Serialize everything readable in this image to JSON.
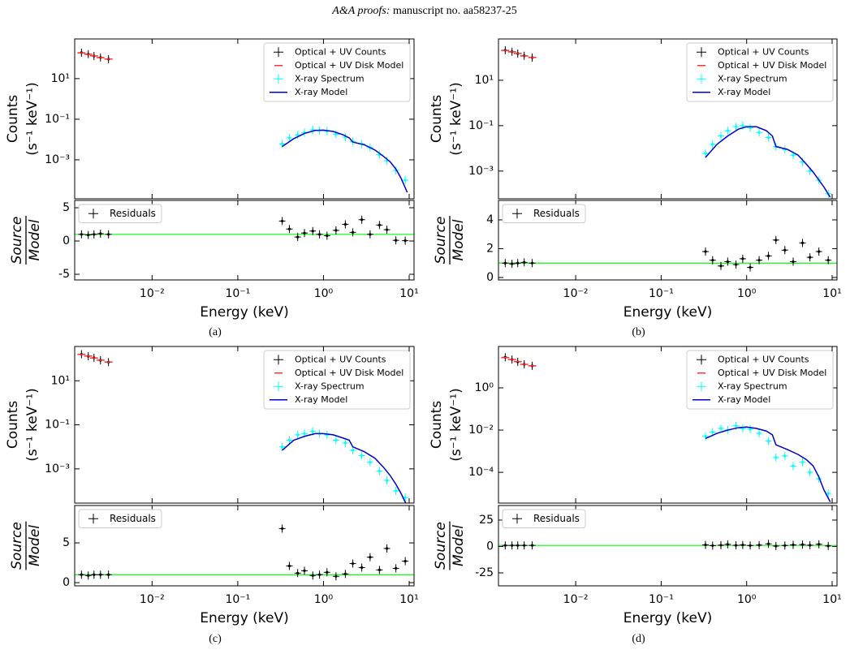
{
  "header": {
    "journal": "A&A proofs:",
    "manuscript": "manuscript no. aa58237-25"
  },
  "captions": [
    "(a)",
    "(b)",
    "(c)",
    "(d)"
  ],
  "chart_data": [
    {
      "type": "spectrum",
      "ylabel": [
        "Counts",
        "(s⁻¹ keV⁻¹)"
      ],
      "xscale": "log",
      "yscale": "log",
      "xlim": [
        0.00125,
        11.4
      ],
      "ylim": [
        1.2e-05,
        900
      ],
      "legend": "upper right",
      "yticks": [
        {
          "value": 10,
          "label": "10¹"
        },
        {
          "value": 0.1,
          "label": "10⁻¹"
        },
        {
          "value": 0.001,
          "label": "10⁻³"
        }
      ],
      "series": [
        {
          "name": "Optical + UV Counts",
          "color": "#000000",
          "marker": "errorbar",
          "x": [
            0.0015,
            0.0018,
            0.0021,
            0.0025,
            0.0031
          ],
          "values": [
            190,
            160,
            130,
            110,
            91
          ]
        },
        {
          "name": "Optical + UV Disk Model",
          "color": "#ff3030",
          "marker": "step",
          "x": [
            0.0015,
            0.0018,
            0.0021,
            0.0025,
            0.0031
          ],
          "values": [
            185,
            158,
            132,
            108,
            92
          ]
        },
        {
          "name": "X-ray Spectrum",
          "color": "#00ffff",
          "marker": "errorbar",
          "x": [
            0.33,
            0.4,
            0.5,
            0.6,
            0.75,
            0.9,
            1.1,
            1.4,
            1.8,
            2.2,
            2.8,
            3.5,
            4.5,
            5.5,
            7,
            9
          ],
          "values": [
            0.006,
            0.012,
            0.017,
            0.022,
            0.03,
            0.028,
            0.026,
            0.018,
            0.013,
            0.008,
            0.006,
            0.004,
            0.0018,
            0.0009,
            0.0003,
            0.0001
          ]
        },
        {
          "name": "X-ray Model",
          "color": "#0000cd",
          "marker": "line",
          "x": [
            0.33,
            0.45,
            0.6,
            0.8,
            1.0,
            1.3,
            1.7,
            2.0,
            2.2,
            3,
            4,
            5,
            6,
            7,
            8,
            9.5
          ],
          "values": [
            0.0045,
            0.011,
            0.02,
            0.028,
            0.029,
            0.025,
            0.017,
            0.012,
            0.0075,
            0.0055,
            0.003,
            0.0015,
            0.0008,
            0.00035,
            0.00013,
            2.5e-05
          ]
        }
      ]
    },
    {
      "type": "residuals",
      "ylabel": {
        "numerator": "Source",
        "denominator": "Model"
      },
      "xlabel": "Energy (keV)",
      "xscale": "log",
      "yscale": "linear",
      "xlim": [
        0.00125,
        11.4
      ],
      "ylim": [
        -5.85,
        6.1
      ],
      "legend": "upper left",
      "hline": 1,
      "hline_color": "#00ff00",
      "xticks": [
        {
          "value": 0.01,
          "label": "10⁻²"
        },
        {
          "value": 0.1,
          "label": "10⁻¹"
        },
        {
          "value": 1,
          "label": "10⁰"
        },
        {
          "value": 10,
          "label": "10¹"
        }
      ],
      "yticks": [
        -5,
        0,
        5
      ],
      "series": [
        {
          "name": "Residuals",
          "color": "#000000",
          "marker": "errorbar",
          "x": [
            0.0015,
            0.0018,
            0.0021,
            0.0025,
            0.0031,
            0.33,
            0.4,
            0.5,
            0.6,
            0.75,
            0.9,
            1.1,
            1.4,
            1.8,
            2.2,
            2.8,
            3.5,
            4.5,
            5.5,
            7,
            9
          ],
          "values": [
            1,
            0.9,
            1,
            1.1,
            1,
            3,
            1.8,
            0.6,
            1.2,
            1.5,
            1,
            0.8,
            1.6,
            2.5,
            1.3,
            3.2,
            1,
            2.4,
            1.7,
            0.1,
            0.05
          ]
        }
      ]
    },
    {
      "type": "spectrum",
      "ylabel": [
        "Counts",
        "(s⁻¹ keV⁻¹)"
      ],
      "xscale": "log",
      "yscale": "log",
      "xlim": [
        0.00125,
        11.4
      ],
      "ylim": [
        6e-05,
        660
      ],
      "legend": "upper right",
      "yticks": [
        {
          "value": 10,
          "label": "10¹"
        },
        {
          "value": 0.1,
          "label": "10⁻¹"
        },
        {
          "value": 0.001,
          "label": "10⁻³"
        }
      ],
      "series": [
        {
          "name": "Optical + UV Counts",
          "color": "#000000",
          "marker": "errorbar",
          "x": [
            0.0015,
            0.0018,
            0.0021,
            0.0025,
            0.0031
          ],
          "values": [
            210,
            180,
            150,
            120,
            100
          ]
        },
        {
          "name": "Optical + UV Disk Model",
          "color": "#ff3030",
          "marker": "step",
          "x": [
            0.0015,
            0.0018,
            0.0021,
            0.0025,
            0.0031
          ],
          "values": [
            205,
            178,
            152,
            118,
            101
          ]
        },
        {
          "name": "X-ray Spectrum",
          "color": "#00ffff",
          "marker": "errorbar",
          "x": [
            0.33,
            0.4,
            0.5,
            0.6,
            0.75,
            0.9,
            1.1,
            1.4,
            1.8,
            2.2,
            2.8,
            3.5,
            4.5,
            5.5,
            7,
            9
          ],
          "values": [
            0.006,
            0.015,
            0.035,
            0.06,
            0.09,
            0.1,
            0.08,
            0.05,
            0.03,
            0.012,
            0.009,
            0.005,
            0.0025,
            0.001,
            0.0004,
            0.0001
          ]
        },
        {
          "name": "X-ray Model",
          "color": "#0000cd",
          "marker": "line",
          "x": [
            0.33,
            0.45,
            0.6,
            0.8,
            1.0,
            1.3,
            1.7,
            2.0,
            2.2,
            3,
            4,
            5,
            6,
            7,
            8,
            9.5
          ],
          "values": [
            0.004,
            0.015,
            0.035,
            0.07,
            0.09,
            0.09,
            0.06,
            0.035,
            0.012,
            0.009,
            0.005,
            0.002,
            0.0009,
            0.0004,
            0.0002,
            7e-05
          ]
        }
      ]
    },
    {
      "type": "residuals",
      "ylabel": {
        "numerator": "Source",
        "denominator": "Model"
      },
      "xlabel": "Energy (keV)",
      "xscale": "log",
      "yscale": "linear",
      "xlim": [
        0.00125,
        11.4
      ],
      "ylim": [
        -0.17,
        5.35
      ],
      "legend": "upper left",
      "hline": 1,
      "hline_color": "#00ff00",
      "xticks": [
        {
          "value": 0.01,
          "label": "10⁻²"
        },
        {
          "value": 0.1,
          "label": "10⁻¹"
        },
        {
          "value": 1,
          "label": "10⁰"
        },
        {
          "value": 10,
          "label": "10¹"
        }
      ],
      "yticks": [
        0,
        2,
        4
      ],
      "series": [
        {
          "name": "Residuals",
          "color": "#000000",
          "marker": "errorbar",
          "x": [
            0.0015,
            0.0018,
            0.0021,
            0.0025,
            0.0031,
            0.33,
            0.4,
            0.5,
            0.6,
            0.75,
            0.9,
            1.1,
            1.4,
            1.8,
            2.2,
            2.8,
            3.5,
            4.5,
            5.5,
            7,
            9
          ],
          "values": [
            1,
            0.95,
            1,
            1.05,
            1,
            1.8,
            1.2,
            0.8,
            1.1,
            0.9,
            1.3,
            0.7,
            1.2,
            1.5,
            2.6,
            1.9,
            1.1,
            2.4,
            1.4,
            1.8,
            1.2
          ]
        }
      ]
    },
    {
      "type": "spectrum",
      "ylabel": [
        "Counts",
        "(s⁻¹ keV⁻¹)"
      ],
      "xscale": "log",
      "yscale": "log",
      "xlim": [
        0.00125,
        11.4
      ],
      "ylim": [
        2.8e-05,
        360
      ],
      "legend": "upper right",
      "yticks": [
        {
          "value": 10,
          "label": "10¹"
        },
        {
          "value": 0.1,
          "label": "10⁻¹"
        },
        {
          "value": 0.001,
          "label": "10⁻³"
        }
      ],
      "series": [
        {
          "name": "Optical + UV Counts",
          "color": "#000000",
          "marker": "errorbar",
          "x": [
            0.0015,
            0.0018,
            0.0021,
            0.0025,
            0.0031
          ],
          "values": [
            160,
            130,
            110,
            85,
            70
          ]
        },
        {
          "name": "Optical + UV Disk Model",
          "color": "#ff3030",
          "marker": "step",
          "x": [
            0.0015,
            0.0018,
            0.0021,
            0.0025,
            0.0031
          ],
          "values": [
            158,
            132,
            108,
            86,
            71
          ]
        },
        {
          "name": "X-ray Spectrum",
          "color": "#00ffff",
          "marker": "errorbar",
          "x": [
            0.33,
            0.4,
            0.5,
            0.6,
            0.75,
            0.9,
            1.1,
            1.4,
            1.8,
            2.2,
            2.8,
            3.5,
            4.5,
            5.5,
            7,
            9
          ],
          "values": [
            0.01,
            0.02,
            0.035,
            0.04,
            0.05,
            0.04,
            0.035,
            0.02,
            0.015,
            0.007,
            0.004,
            0.002,
            0.0008,
            0.0003,
            0.0001,
            5e-05
          ]
        },
        {
          "name": "X-ray Model",
          "color": "#0000cd",
          "marker": "line",
          "x": [
            0.33,
            0.45,
            0.6,
            0.8,
            1.0,
            1.3,
            1.7,
            2.0,
            2.2,
            3,
            4,
            5,
            6,
            7,
            8,
            9.5
          ],
          "values": [
            0.007,
            0.02,
            0.03,
            0.04,
            0.04,
            0.035,
            0.025,
            0.02,
            0.01,
            0.006,
            0.003,
            0.0012,
            0.0005,
            0.0002,
            8e-05,
            2e-05
          ]
        }
      ]
    },
    {
      "type": "residuals",
      "ylabel": {
        "numerator": "Source",
        "denominator": "Model"
      },
      "xlabel": "Energy (keV)",
      "xscale": "log",
      "yscale": "linear",
      "xlim": [
        0.00125,
        11.4
      ],
      "ylim": [
        -0.4,
        9.7
      ],
      "legend": "upper left",
      "hline": 1,
      "hline_color": "#00ff00",
      "xticks": [
        {
          "value": 0.01,
          "label": "10⁻²"
        },
        {
          "value": 0.1,
          "label": "10⁻¹"
        },
        {
          "value": 1,
          "label": "10⁰"
        },
        {
          "value": 10,
          "label": "10¹"
        }
      ],
      "yticks": [
        0,
        5
      ],
      "series": [
        {
          "name": "Residuals",
          "color": "#000000",
          "marker": "errorbar",
          "x": [
            0.0015,
            0.0018,
            0.0021,
            0.0025,
            0.0031,
            0.33,
            0.4,
            0.5,
            0.6,
            0.75,
            0.9,
            1.1,
            1.4,
            1.8,
            2.2,
            2.8,
            3.5,
            4.5,
            5.5,
            7,
            9
          ],
          "values": [
            1,
            0.9,
            1,
            1,
            1,
            6.8,
            2.1,
            1.2,
            1.5,
            0.9,
            1,
            1.3,
            0.8,
            1.1,
            2.4,
            1.9,
            3.2,
            1.6,
            4.3,
            1.8,
            2.7
          ]
        }
      ]
    },
    {
      "type": "spectrum",
      "ylabel": [
        "Counts",
        "(s⁻¹ keV⁻¹)"
      ],
      "xscale": "log",
      "yscale": "log",
      "xlim": [
        0.00125,
        11.4
      ],
      "ylim": [
        3.5e-06,
        91
      ],
      "legend": "upper right",
      "yticks": [
        {
          "value": 1,
          "label": "10⁰"
        },
        {
          "value": 0.01,
          "label": "10⁻²"
        },
        {
          "value": 0.0001,
          "label": "10⁻⁴"
        }
      ],
      "series": [
        {
          "name": "Optical + UV Counts",
          "color": "#000000",
          "marker": "errorbar",
          "x": [
            0.0015,
            0.0018,
            0.0021,
            0.0025,
            0.0031
          ],
          "values": [
            28,
            22,
            17,
            13,
            11
          ]
        },
        {
          "name": "Optical + UV Disk Model",
          "color": "#ff3030",
          "marker": "step",
          "x": [
            0.0015,
            0.0018,
            0.0021,
            0.0025,
            0.0031
          ],
          "values": [
            27,
            22,
            17.5,
            13,
            11
          ]
        },
        {
          "name": "X-ray Spectrum",
          "color": "#00ffff",
          "marker": "errorbar",
          "x": [
            0.33,
            0.4,
            0.5,
            0.6,
            0.75,
            0.9,
            1.1,
            1.4,
            1.8,
            2.2,
            2.8,
            3.5,
            4.5,
            5.5,
            7,
            9
          ],
          "values": [
            0.005,
            0.008,
            0.012,
            0.01,
            0.016,
            0.012,
            0.011,
            0.007,
            0.003,
            0.0005,
            0.0006,
            0.0002,
            0.0003,
            0.0001,
            5e-05,
            1e-05
          ]
        },
        {
          "name": "X-ray Model",
          "color": "#0000cd",
          "marker": "line",
          "x": [
            0.33,
            0.45,
            0.6,
            0.8,
            1.0,
            1.3,
            1.7,
            2.0,
            2.2,
            3,
            4,
            5,
            6,
            7,
            8,
            9.5
          ],
          "values": [
            0.004,
            0.007,
            0.01,
            0.013,
            0.014,
            0.012,
            0.009,
            0.006,
            0.002,
            0.0012,
            0.0007,
            0.0004,
            0.0002,
            6e-05,
            1.5e-05,
            4e-06
          ]
        }
      ]
    },
    {
      "type": "residuals",
      "ylabel": {
        "numerator": "Source",
        "denominator": "Model"
      },
      "xlabel": "Energy (keV)",
      "xscale": "log",
      "yscale": "linear",
      "xlim": [
        0.00125,
        11.4
      ],
      "ylim": [
        -37.3,
        38.8
      ],
      "legend": "upper left",
      "hline": 1,
      "hline_color": "#00ff00",
      "xticks": [
        {
          "value": 0.01,
          "label": "10⁻²"
        },
        {
          "value": 0.1,
          "label": "10⁻¹"
        },
        {
          "value": 1,
          "label": "10⁰"
        },
        {
          "value": 10,
          "label": "10¹"
        }
      ],
      "yticks": [
        -25,
        0,
        25
      ],
      "series": [
        {
          "name": "Residuals",
          "color": "#000000",
          "marker": "errorbar",
          "x": [
            0.0015,
            0.0018,
            0.0021,
            0.0025,
            0.0031,
            0.33,
            0.4,
            0.5,
            0.6,
            0.75,
            0.9,
            1.1,
            1.4,
            1.8,
            2.2,
            2.8,
            3.5,
            4.5,
            5.5,
            7,
            9
          ],
          "values": [
            1,
            1,
            1,
            1,
            1,
            1.5,
            0.8,
            1.2,
            2,
            1.1,
            1.4,
            0.9,
            1.3,
            2.5,
            0.4,
            0.9,
            1.5,
            1.8,
            1.2,
            2.1,
            0.5
          ]
        }
      ]
    }
  ]
}
